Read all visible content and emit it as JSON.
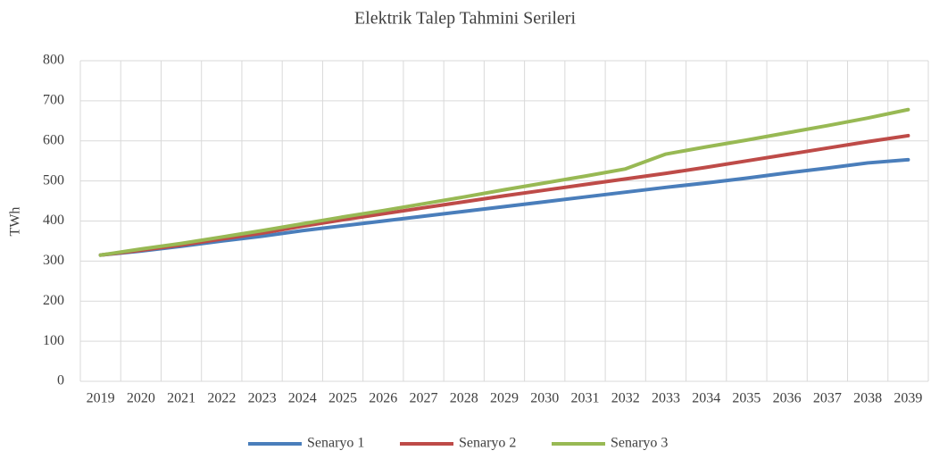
{
  "chart_data": {
    "type": "line",
    "title": "Elektrik Talep Tahmini  Serileri",
    "y_label": "TWh",
    "categories": [
      "2019",
      "2020",
      "2021",
      "2022",
      "2023",
      "2024",
      "2025",
      "2026",
      "2027",
      "2028",
      "2029",
      "2030",
      "2031",
      "2032",
      "2033",
      "2034",
      "2035",
      "2036",
      "2037",
      "2038",
      "2039"
    ],
    "series": [
      {
        "name": "Senaryo 1",
        "color": "#4a7ebb",
        "values": [
          315,
          325,
          337,
          350,
          362,
          376,
          388,
          400,
          412,
          424,
          436,
          448,
          460,
          472,
          484,
          495,
          507,
          520,
          532,
          545,
          553
        ]
      },
      {
        "name": "Senaryo 2",
        "color": "#be4b48",
        "values": [
          315,
          327,
          340,
          355,
          370,
          387,
          403,
          418,
          433,
          448,
          463,
          477,
          491,
          505,
          519,
          534,
          550,
          566,
          582,
          598,
          613
        ]
      },
      {
        "name": "Senaryo 3",
        "color": "#98b954",
        "values": [
          315,
          330,
          344,
          360,
          376,
          393,
          410,
          426,
          443,
          460,
          478,
          495,
          512,
          530,
          567,
          585,
          602,
          620,
          638,
          657,
          678
        ]
      }
    ],
    "ylim": [
      0,
      800
    ],
    "yticks": [
      0,
      100,
      200,
      300,
      400,
      500,
      600,
      700,
      800
    ],
    "grid": true,
    "legend": "bottom"
  }
}
